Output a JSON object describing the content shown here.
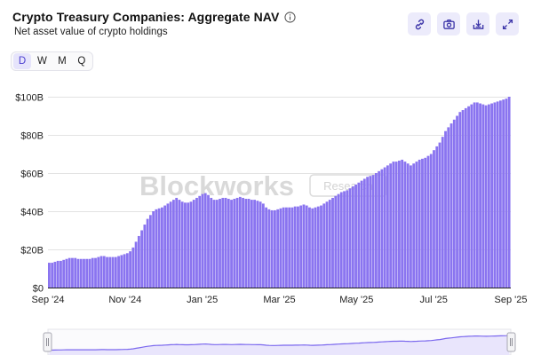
{
  "header": {
    "title": "Crypto Treasury Companies: Aggregate NAV",
    "subtitle": "Net asset value of crypto holdings"
  },
  "toolbar": {
    "items": [
      {
        "name": "link",
        "icon": "link-icon"
      },
      {
        "name": "screenshot",
        "icon": "camera-icon"
      },
      {
        "name": "download",
        "icon": "download-icon"
      },
      {
        "name": "expand",
        "icon": "expand-icon"
      }
    ]
  },
  "ranges": {
    "options": [
      "D",
      "W",
      "M",
      "Q"
    ],
    "selected": "D"
  },
  "watermark": {
    "brand": "Blockworks",
    "tag": "Research"
  },
  "colors": {
    "bar": "#8a74f0",
    "bar_edge": "#6d56e6",
    "accent": "#4b3fd0",
    "navigator_line": "#7b68ee"
  },
  "chart_data": {
    "type": "bar",
    "title": "Crypto Treasury Companies: Aggregate NAV",
    "subtitle": "Net asset value of crypto holdings",
    "xlabel": "",
    "ylabel": "",
    "frequency": "daily",
    "x_range": [
      "Sep 2024",
      "Sep 2025"
    ],
    "ylim": [
      0,
      100
    ],
    "unit": "$B",
    "grid": true,
    "y_ticks": [
      "$0",
      "$20B",
      "$40B",
      "$60B",
      "$80B",
      "$100B"
    ],
    "y_tick_values": [
      0,
      20,
      40,
      60,
      80,
      100
    ],
    "x_ticks": [
      "Sep '24",
      "Nov '24",
      "Jan '25",
      "Mar '25",
      "May '25",
      "Jul '25",
      "Sep '25"
    ],
    "x_tick_months": [
      0,
      2,
      4,
      6,
      8,
      10,
      12
    ],
    "series": [
      {
        "values": [
          13,
          13,
          13.5,
          14,
          14,
          14.5,
          15,
          15.5,
          15.5,
          15.5,
          15,
          15,
          15,
          15,
          15,
          15.5,
          15.5,
          16,
          16.5,
          16.5,
          16,
          16,
          16,
          16,
          16.5,
          17,
          17.5,
          18,
          19,
          21,
          24,
          27,
          30,
          33,
          36,
          38,
          40,
          41,
          41.5,
          42,
          43,
          44,
          45,
          46,
          47,
          46,
          45,
          44.5,
          44.5,
          45,
          46,
          47,
          48,
          49,
          49.5,
          48.5,
          47,
          46,
          46,
          46.5,
          47,
          47,
          46.5,
          46,
          46.5,
          47,
          47.5,
          47,
          46.5,
          46.5,
          46,
          46,
          45.5,
          45,
          44,
          42,
          41,
          40.5,
          40.5,
          41,
          41.5,
          42,
          42,
          42,
          42,
          42.5,
          42.5,
          43,
          43.5,
          43,
          42,
          41.5,
          42,
          42.5,
          43,
          44,
          45,
          46,
          47,
          48,
          49,
          50,
          50.5,
          51,
          52,
          53,
          54,
          55,
          56,
          57,
          58,
          58.5,
          59,
          60,
          61,
          62,
          63,
          64,
          65,
          66,
          66,
          66.5,
          67,
          66,
          65,
          64,
          65,
          66,
          67,
          67.5,
          68,
          69,
          70,
          72,
          74,
          76,
          79,
          82,
          84,
          86,
          88,
          90,
          92,
          93,
          94,
          95,
          96,
          97,
          97,
          96.5,
          96,
          95.5,
          96,
          96.5,
          97,
          97.5,
          98,
          98.5,
          99,
          100
        ]
      }
    ]
  }
}
